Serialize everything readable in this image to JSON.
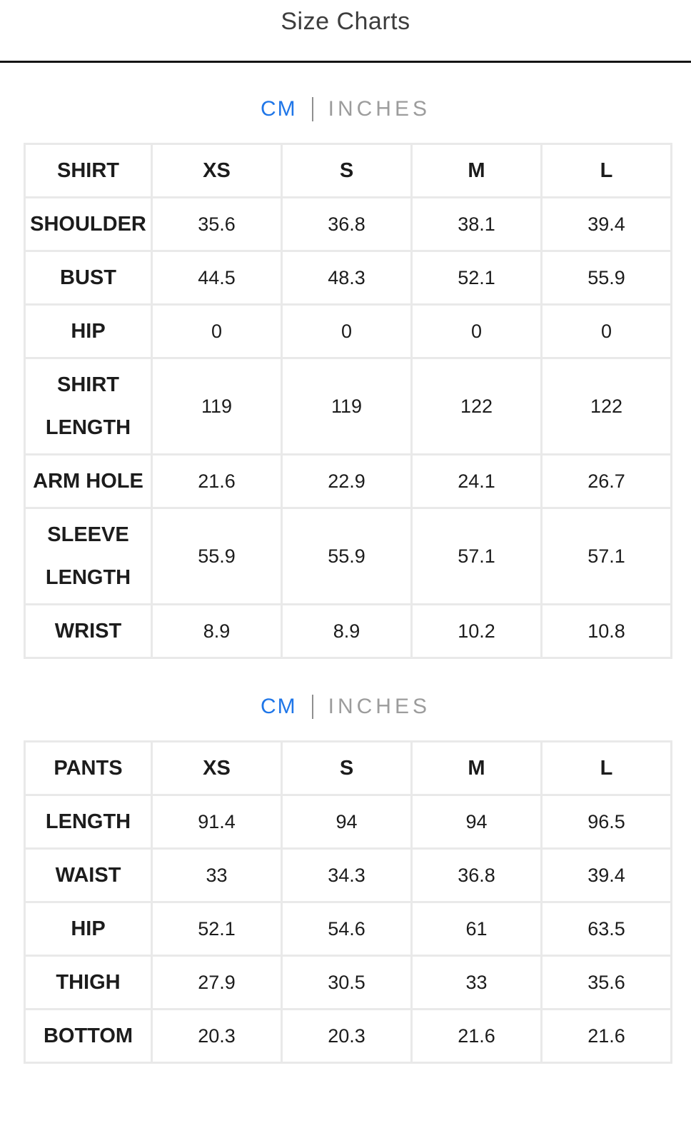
{
  "page": {
    "title": "Size Charts"
  },
  "unit_toggle": {
    "cm_label": "CM",
    "inches_label": "INCHES",
    "active_unit": "CM",
    "active_color": "#1f76e8",
    "inactive_color": "#9c9c9c"
  },
  "shirt_table": {
    "header": [
      "SHIRT",
      "XS",
      "S",
      "M",
      "L"
    ],
    "rows": [
      {
        "label": "SHOULDER",
        "values": [
          "35.6",
          "36.8",
          "38.1",
          "39.4"
        ]
      },
      {
        "label": "BUST",
        "values": [
          "44.5",
          "48.3",
          "52.1",
          "55.9"
        ]
      },
      {
        "label": "HIP",
        "values": [
          "0",
          "0",
          "0",
          "0"
        ]
      },
      {
        "label": "SHIRT LENGTH",
        "values": [
          "119",
          "119",
          "122",
          "122"
        ]
      },
      {
        "label": "ARM HOLE",
        "values": [
          "21.6",
          "22.9",
          "24.1",
          "26.7"
        ]
      },
      {
        "label": "SLEEVE LENGTH",
        "values": [
          "55.9",
          "55.9",
          "57.1",
          "57.1"
        ]
      },
      {
        "label": "WRIST",
        "values": [
          "8.9",
          "8.9",
          "10.2",
          "10.8"
        ]
      }
    ]
  },
  "pants_table": {
    "header": [
      "PANTS",
      "XS",
      "S",
      "M",
      "L"
    ],
    "rows": [
      {
        "label": "LENGTH",
        "values": [
          "91.4",
          "94",
          "94",
          "96.5"
        ]
      },
      {
        "label": "WAIST",
        "values": [
          "33",
          "34.3",
          "36.8",
          "39.4"
        ]
      },
      {
        "label": "HIP",
        "values": [
          "52.1",
          "54.6",
          "61",
          "63.5"
        ]
      },
      {
        "label": "THIGH",
        "values": [
          "27.9",
          "30.5",
          "33",
          "35.6"
        ]
      },
      {
        "label": "BOTTOM",
        "values": [
          "20.3",
          "20.3",
          "21.6",
          "21.6"
        ]
      }
    ]
  }
}
